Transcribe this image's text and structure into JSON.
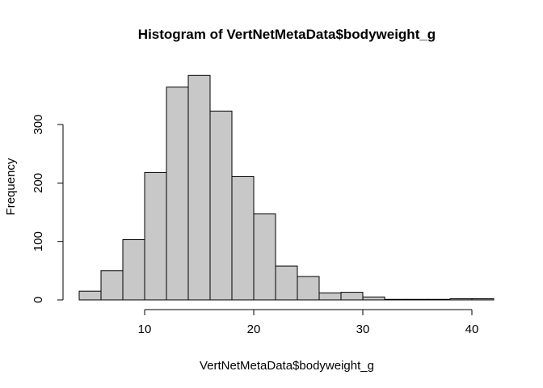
{
  "chart_data": {
    "type": "bar",
    "title": "Histogram of VertNetMetaData$bodyweight_g",
    "xlabel": "VertNetMetaData$bodyweight_g",
    "ylabel": "Frequency",
    "bin_edges": [
      4,
      6,
      8,
      10,
      12,
      14,
      16,
      18,
      20,
      22,
      24,
      26,
      28,
      30,
      32,
      34,
      36,
      38,
      40,
      42
    ],
    "values": [
      15,
      50,
      103,
      218,
      364,
      384,
      323,
      211,
      147,
      58,
      40,
      12,
      13,
      5,
      1,
      1,
      1,
      2,
      2
    ],
    "xlim": [
      4,
      42
    ],
    "ylim": [
      0,
      390
    ],
    "x_ticks": [
      10,
      20,
      30,
      40
    ],
    "y_ticks": [
      0,
      100,
      200,
      300
    ],
    "bar_color": "#c8c8c8",
    "grid": false
  }
}
